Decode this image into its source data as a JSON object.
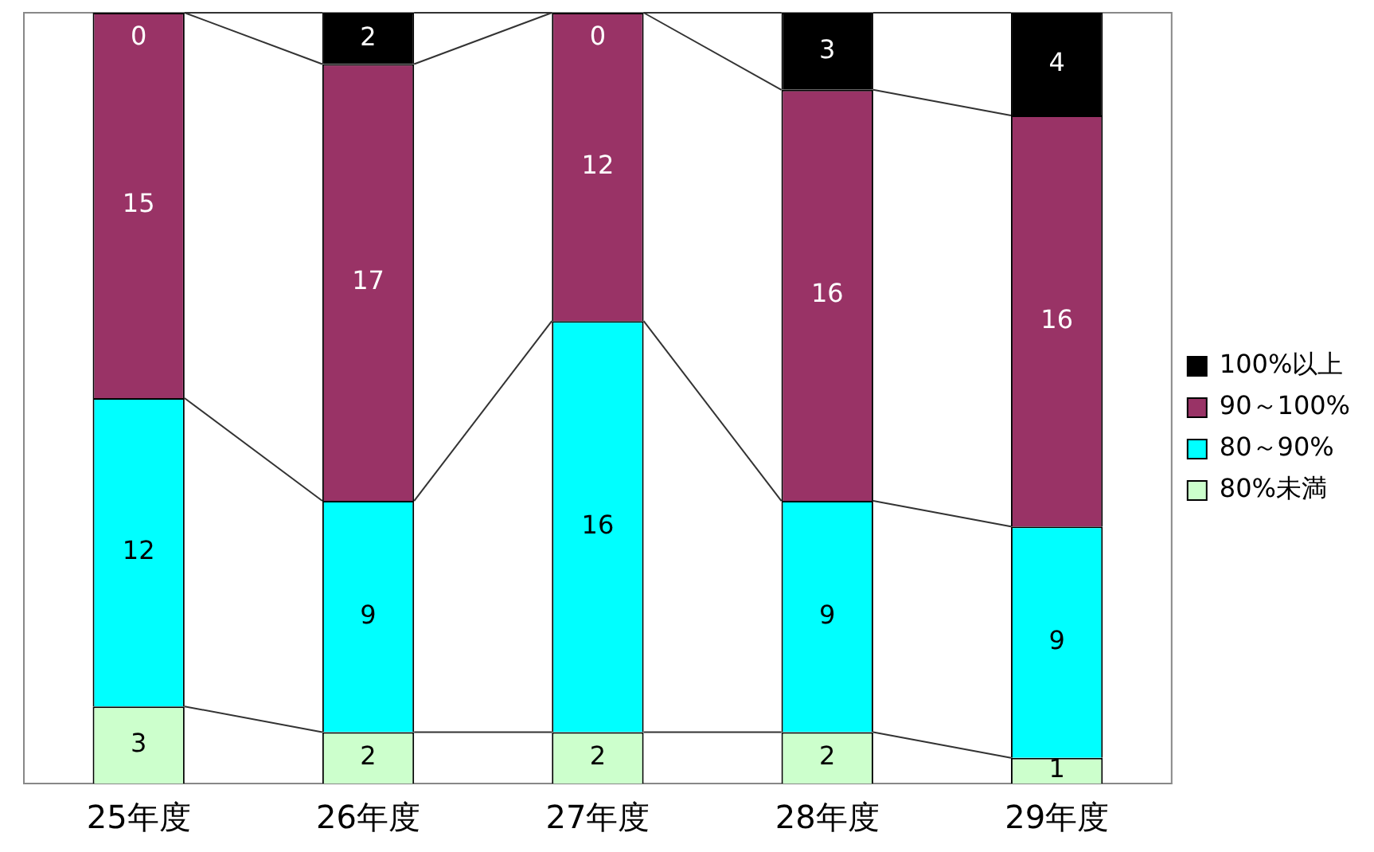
{
  "chart_data": {
    "type": "bar",
    "stacked": true,
    "categories": [
      "25年度",
      "26年度",
      "27年度",
      "28年度",
      "29年度"
    ],
    "series": [
      {
        "name": "80%未満",
        "color": "#ccffcc",
        "values": [
          3,
          2,
          2,
          2,
          1
        ]
      },
      {
        "name": "80～90%",
        "color": "#00ffff",
        "values": [
          12,
          9,
          16,
          9,
          9
        ]
      },
      {
        "name": "90～100%",
        "color": "#993366",
        "values": [
          15,
          17,
          12,
          16,
          16
        ]
      },
      {
        "name": "100%以上",
        "color": "#000000",
        "values": [
          0,
          2,
          0,
          3,
          4
        ]
      }
    ],
    "ylim": [
      0,
      30
    ],
    "tick_labels": "x",
    "legend": "right",
    "data_labels": true
  }
}
